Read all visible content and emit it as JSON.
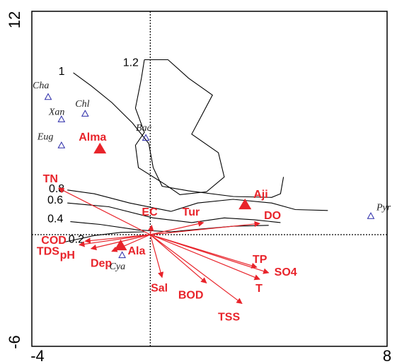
{
  "chart_data": {
    "type": "scatter",
    "title": "",
    "xlabel": "",
    "ylabel": "",
    "xlim": [
      -4,
      8
    ],
    "ylim": [
      -6,
      12
    ],
    "x_tick_labels": [
      "-4",
      "8"
    ],
    "y_tick_labels": [
      "12",
      "-6"
    ],
    "reference_lines": {
      "x": 0,
      "y": 0,
      "style": "dashed"
    },
    "colors": {
      "arrow": "#e8232a",
      "species": "#2a2aa8",
      "contour": "#000000",
      "axis": "#000000"
    },
    "species": [
      {
        "label": "Cha",
        "x": -3.45,
        "y": 7.4
      },
      {
        "label": "Xan",
        "x": -3.0,
        "y": 6.2
      },
      {
        "label": "Chl",
        "x": -2.2,
        "y": 6.5
      },
      {
        "label": "Eug",
        "x": -3.0,
        "y": 4.8
      },
      {
        "label": "Bac",
        "x": -0.15,
        "y": 5.2
      },
      {
        "label": "Cya",
        "x": -0.95,
        "y": -1.1
      },
      {
        "label": "Pyr",
        "x": 7.45,
        "y": 1.0
      }
    ],
    "sites": [
      {
        "label": "Alma",
        "x": -1.7,
        "y": 4.6
      },
      {
        "label": "Aji",
        "x": 3.2,
        "y": 1.6
      },
      {
        "label": "Ala",
        "x": -1.0,
        "y": -0.6
      }
    ],
    "vectors": [
      {
        "label": "TN",
        "x": -3.1,
        "y": 2.5
      },
      {
        "label": "EC",
        "x": 0.05,
        "y": 0.5
      },
      {
        "label": "Tur",
        "x": 1.8,
        "y": 0.65
      },
      {
        "label": "DO",
        "x": 3.7,
        "y": 0.6
      },
      {
        "label": "COD",
        "x": -2.2,
        "y": -0.35
      },
      {
        "label": "TDS",
        "x": -2.4,
        "y": -0.55
      },
      {
        "label": "pH",
        "x": -2.0,
        "y": -0.75
      },
      {
        "label": "Dep",
        "x": -1.3,
        "y": -0.9
      },
      {
        "label": "Sal",
        "x": 0.4,
        "y": -2.3
      },
      {
        "label": "BOD",
        "x": 1.9,
        "y": -2.6
      },
      {
        "label": "TSS",
        "x": 3.1,
        "y": -3.7
      },
      {
        "label": "TP",
        "x": 3.6,
        "y": -1.75
      },
      {
        "label": "SO4",
        "x": 4.0,
        "y": -2.05
      },
      {
        "label": "T",
        "x": 3.7,
        "y": -2.4
      }
    ],
    "contours": [
      {
        "label": "1.2",
        "points": [
          [
            -0.2,
            9.4
          ],
          [
            0.6,
            9.4
          ],
          [
            1.3,
            8.4
          ],
          [
            2.1,
            7.5
          ],
          [
            1.7,
            6.3
          ],
          [
            1.4,
            5.4
          ],
          [
            2.3,
            4.4
          ],
          [
            2.5,
            3.1
          ],
          [
            1.9,
            2.3
          ],
          [
            1.0,
            2.15
          ],
          [
            0.5,
            2.7
          ],
          [
            -0.4,
            3.6
          ],
          [
            -0.5,
            4.8
          ],
          [
            -0.2,
            5.5
          ],
          [
            -0.5,
            6.8
          ],
          [
            -0.3,
            8.4
          ],
          [
            -0.2,
            9.4
          ]
        ]
      },
      {
        "label": "1",
        "points": [
          [
            -2.6,
            8.7
          ],
          [
            -2.0,
            8.0
          ],
          [
            -1.3,
            7.1
          ],
          [
            -0.6,
            6.0
          ],
          [
            -0.05,
            4.9
          ],
          [
            0.1,
            3.6
          ],
          [
            0.4,
            2.6
          ],
          [
            1.3,
            2.35
          ],
          [
            2.8,
            2.05
          ],
          [
            4.1,
            2.0
          ],
          [
            4.4,
            2.2
          ],
          [
            4.5,
            3.1
          ]
        ]
      },
      {
        "label": "0.8",
        "points": [
          [
            -2.8,
            2.4
          ],
          [
            -1.9,
            2.2
          ],
          [
            -0.7,
            1.7
          ],
          [
            0.7,
            1.25
          ],
          [
            1.6,
            1.7
          ],
          [
            2.8,
            1.9
          ],
          [
            4.1,
            1.7
          ],
          [
            4.9,
            1.35
          ],
          [
            6.0,
            1.3
          ]
        ]
      },
      {
        "label": "0.6",
        "points": [
          [
            -2.8,
            1.7
          ],
          [
            -1.4,
            1.5
          ],
          [
            0.1,
            0.9
          ],
          [
            1.4,
            0.65
          ],
          [
            2.5,
            0.9
          ],
          [
            3.5,
            0.8
          ],
          [
            4.4,
            0.65
          ]
        ]
      },
      {
        "label": "0.4",
        "points": [
          [
            -2.7,
            0.7
          ],
          [
            -1.7,
            0.55
          ],
          [
            -0.4,
            0.25
          ],
          [
            0.7,
            0.15
          ],
          [
            1.7,
            0.3
          ],
          [
            2.8,
            0.45
          ],
          [
            4.0,
            0.5
          ]
        ]
      },
      {
        "label": "0.2",
        "points": [
          [
            -2.9,
            -0.4
          ],
          [
            -1.9,
            -0.05
          ],
          [
            -1.0,
            0.12
          ],
          [
            -0.2,
            0.15
          ]
        ]
      }
    ]
  }
}
